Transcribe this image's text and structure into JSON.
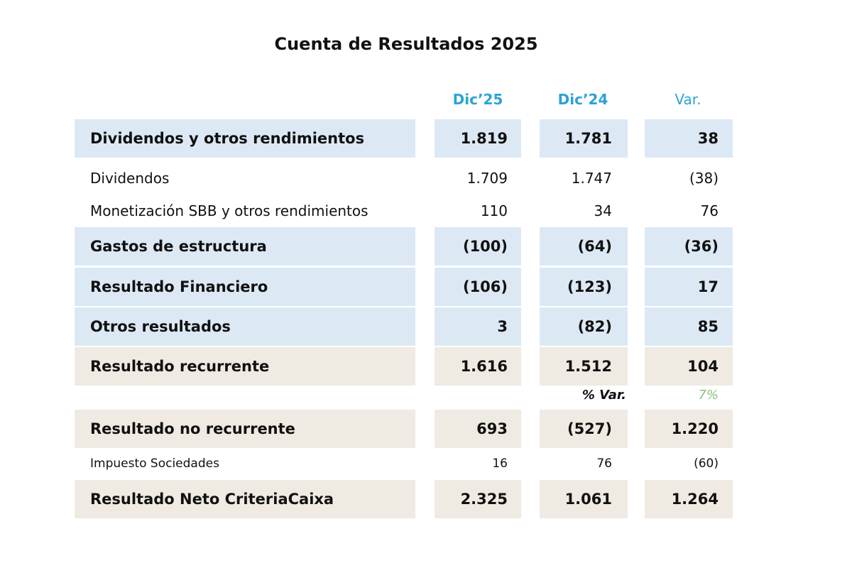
{
  "title": "Cuenta de Resultados 2025",
  "table": {
    "columns": [
      "Dic’25",
      "Dic’24",
      "Var."
    ],
    "rows": [
      [
        "Dividendos y otros rendimientos",
        "1.819",
        "1.781",
        "38"
      ],
      [
        "Dividendos",
        "1.709",
        "1.747",
        "(38)"
      ],
      [
        "Monetización SBB y otros rendimientos",
        "110",
        "34",
        "76"
      ],
      [
        "Gastos de estructura",
        "(100)",
        "(64)",
        "(36)"
      ],
      [
        "Resultado Financiero",
        "(106)",
        "(123)",
        "17"
      ],
      [
        "Otros resultados",
        "3",
        "(82)",
        "85"
      ],
      [
        "Resultado recurrente",
        "1.616",
        "1.512",
        "104"
      ],
      [
        "Resultado no recurrente",
        "693",
        "(527)",
        "1.220"
      ],
      [
        "Impuesto Sociedades",
        "16",
        "76",
        "(60)"
      ],
      [
        "Resultado Neto CriteriaCaixa",
        "2.325",
        "1.061",
        "1.264"
      ]
    ],
    "percent_var": {
      "label": "% Var.",
      "value": "7%"
    }
  }
}
